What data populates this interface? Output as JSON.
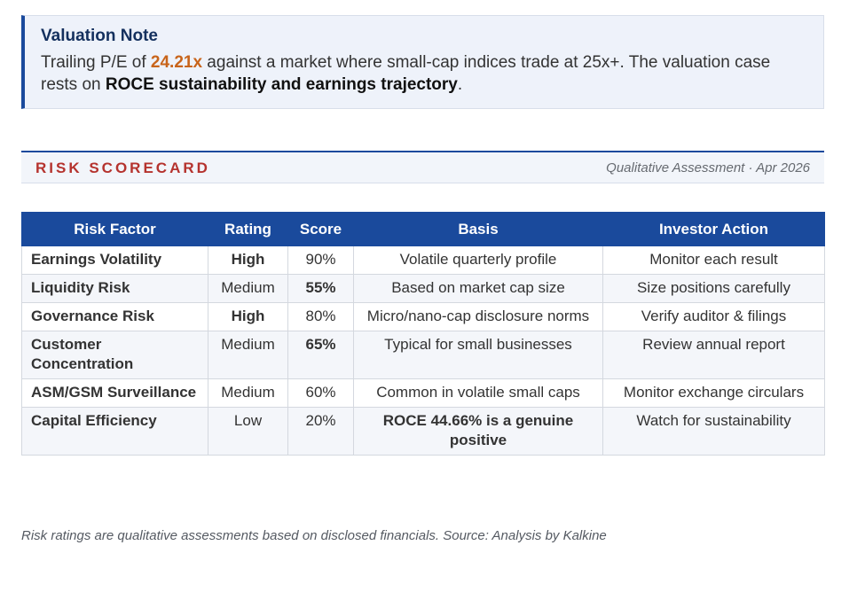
{
  "valuation_note": {
    "title": "Valuation Note",
    "line_part1": "Trailing P/E of ",
    "pe_value": "24.21x",
    "line_part2": " against a market where small-cap indices trade at 25x+. The valuation case rests on ",
    "emphasis": "ROCE sustainability and earnings trajectory",
    "line_end": ".",
    "colors": {
      "accent": "#1a4a9c",
      "highlight": "#c8641a"
    }
  },
  "scorecard": {
    "title": "RISK SCORECARD",
    "meta": "Qualitative Assessment · Apr 2026"
  },
  "table": {
    "headers": [
      "Risk Factor",
      "Rating",
      "Score",
      "Basis",
      "Investor Action"
    ],
    "rows": [
      {
        "factor": "Earnings Volatility",
        "rating": "High",
        "rating_level": "high",
        "score": "90%",
        "score_positive": false,
        "basis": "Volatile quarterly profile",
        "basis_positive": false,
        "action": "Monitor each result"
      },
      {
        "factor": "Liquidity Risk",
        "rating": "Medium",
        "rating_level": "medium",
        "score": "55%",
        "score_positive": true,
        "basis": "Based on market cap size",
        "basis_positive": false,
        "action": "Size positions carefully"
      },
      {
        "factor": "Governance Risk",
        "rating": "High",
        "rating_level": "high",
        "score": "80%",
        "score_positive": false,
        "basis": "Micro/nano-cap disclosure norms",
        "basis_positive": false,
        "action": "Verify auditor & filings"
      },
      {
        "factor": "Customer Concentration",
        "rating": "Medium",
        "rating_level": "medium",
        "score": "65%",
        "score_positive": true,
        "basis": "Typical for small businesses",
        "basis_positive": false,
        "action": "Review annual report"
      },
      {
        "factor": "ASM/GSM Surveillance",
        "rating": "Medium",
        "rating_level": "medium",
        "score": "60%",
        "score_positive": false,
        "basis": "Common in volatile small caps",
        "basis_positive": false,
        "action": "Monitor exchange circulars"
      },
      {
        "factor": "Capital Efficiency",
        "rating": "Low",
        "rating_level": "low",
        "score": "20%",
        "score_positive": false,
        "basis": "ROCE 44.66% is a genuine positive",
        "basis_positive": true,
        "action": "Watch for sustainability"
      }
    ],
    "colors": {
      "header_bg": "#1a4a9c",
      "high": "#c0302b",
      "medium": "#c8641a",
      "positive": "#2c8a3c"
    }
  },
  "footnote": "Risk ratings are qualitative assessments based on disclosed financials. Source: Analysis by Kalkine"
}
